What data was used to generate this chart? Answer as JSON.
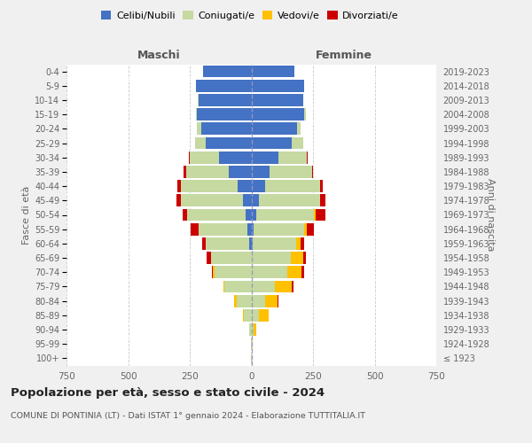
{
  "age_groups": [
    "100+",
    "95-99",
    "90-94",
    "85-89",
    "80-84",
    "75-79",
    "70-74",
    "65-69",
    "60-64",
    "55-59",
    "50-54",
    "45-49",
    "40-44",
    "35-39",
    "30-34",
    "25-29",
    "20-24",
    "15-19",
    "10-14",
    "5-9",
    "0-4"
  ],
  "birth_years": [
    "≤ 1923",
    "1924-1928",
    "1929-1933",
    "1934-1938",
    "1939-1943",
    "1944-1948",
    "1949-1953",
    "1954-1958",
    "1959-1963",
    "1964-1968",
    "1969-1973",
    "1974-1978",
    "1979-1983",
    "1984-1988",
    "1989-1993",
    "1994-1998",
    "1999-2003",
    "2004-2008",
    "2009-2013",
    "2014-2018",
    "2019-2023"
  ],
  "male": {
    "celibi": [
      0,
      0,
      0,
      0,
      0,
      0,
      0,
      0,
      10,
      15,
      25,
      35,
      55,
      90,
      130,
      185,
      205,
      220,
      215,
      225,
      195
    ],
    "coniugati": [
      2,
      3,
      8,
      30,
      60,
      110,
      150,
      165,
      175,
      200,
      235,
      250,
      230,
      175,
      120,
      45,
      15,
      5,
      2,
      0,
      0
    ],
    "vedovi": [
      0,
      0,
      0,
      5,
      10,
      5,
      5,
      0,
      0,
      0,
      0,
      0,
      0,
      0,
      0,
      0,
      0,
      0,
      0,
      0,
      0
    ],
    "divorziati": [
      0,
      0,
      0,
      0,
      0,
      0,
      5,
      15,
      15,
      30,
      20,
      20,
      15,
      10,
      5,
      0,
      0,
      0,
      0,
      0,
      0
    ]
  },
  "female": {
    "nubili": [
      0,
      0,
      0,
      0,
      0,
      0,
      0,
      0,
      5,
      10,
      20,
      30,
      55,
      75,
      110,
      165,
      185,
      215,
      210,
      215,
      175
    ],
    "coniugate": [
      2,
      4,
      10,
      30,
      55,
      95,
      145,
      160,
      175,
      205,
      235,
      250,
      225,
      170,
      115,
      45,
      15,
      5,
      2,
      0,
      0
    ],
    "vedove": [
      0,
      2,
      10,
      40,
      50,
      70,
      60,
      50,
      20,
      10,
      5,
      0,
      0,
      0,
      0,
      0,
      0,
      0,
      0,
      0,
      0
    ],
    "divorziate": [
      0,
      0,
      0,
      0,
      5,
      5,
      10,
      10,
      15,
      30,
      40,
      20,
      10,
      5,
      5,
      0,
      0,
      0,
      0,
      0,
      0
    ]
  },
  "colors": {
    "celibi": "#4472c4",
    "coniugati": "#c5d9a0",
    "vedovi": "#ffc000",
    "divorziati": "#cc0000"
  },
  "xlim": 750,
  "title": "Popolazione per età, sesso e stato civile - 2024",
  "subtitle": "COMUNE DI PONTINIA (LT) - Dati ISTAT 1° gennaio 2024 - Elaborazione TUTTITALIA.IT",
  "ylabel_left": "Fasce di età",
  "ylabel_right": "Anni di nascita",
  "xlabel_maschi": "Maschi",
  "xlabel_femmine": "Femmine",
  "bg_color": "#f0f0f0",
  "plot_bg_color": "#ffffff"
}
